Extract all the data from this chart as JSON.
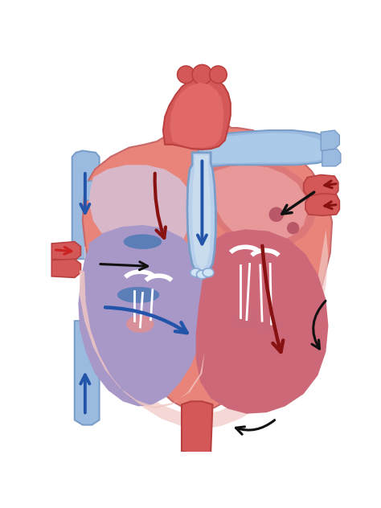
{
  "bg_color": "#ffffff",
  "heart_red_light": "#E8847A",
  "heart_red_mid": "#D4605A",
  "heart_red_dark": "#C04848",
  "heart_blue_light": "#9BBAE0",
  "heart_blue_mid": "#7A9EC8",
  "heart_blue_dark": "#5B7DB8",
  "pink_light": "#F0B8B8",
  "pink_peri": "#F2C8C4",
  "lavender": "#C0A8C8",
  "purple_rv": "#A898C8",
  "arrow_blue": "#2255AA",
  "arrow_red_dark": "#881111",
  "arrow_black": "#111111",
  "arrow_red": "#CC2222",
  "figsize": [
    4.74,
    6.32
  ],
  "dpi": 100
}
